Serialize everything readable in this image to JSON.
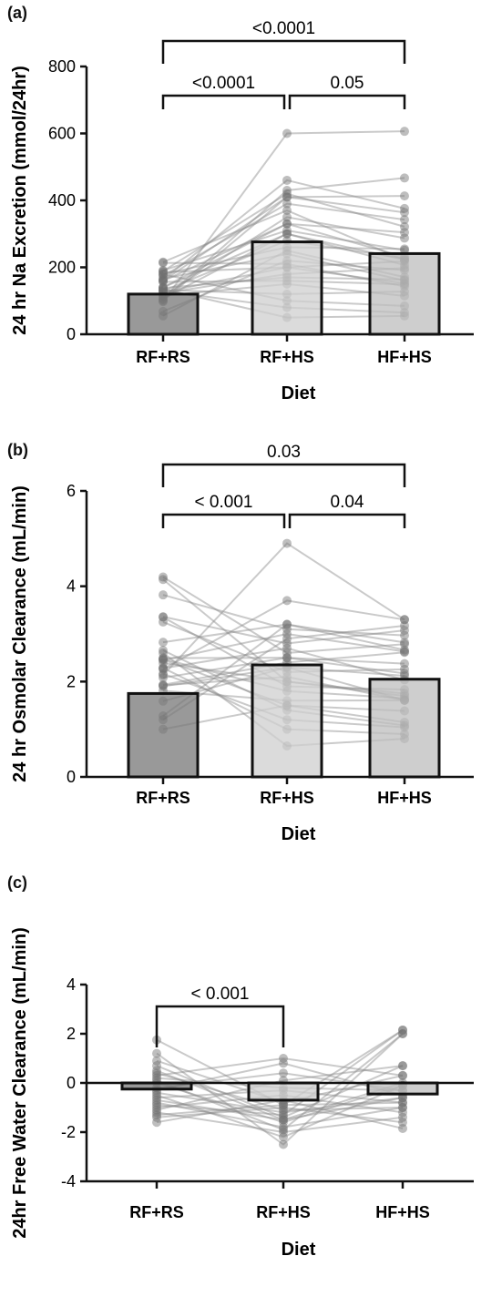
{
  "chart_data": [
    {
      "panel": "(a)",
      "type": "bar",
      "xlabel": "Diet",
      "ylabel": "24 hr Na Excretion (mmol/24hr)",
      "categories": [
        "RF+RS",
        "RF+HS",
        "HF+HS"
      ],
      "values": [
        120,
        276,
        241
      ],
      "bar_colors": [
        "#777777",
        "#cfcfcf",
        "#bdbdbd"
      ],
      "ylim": [
        0,
        800
      ],
      "yticks": [
        "0",
        "200",
        "400",
        "600",
        "800"
      ],
      "comparisons": [
        {
          "from": 0,
          "to": 2,
          "label": "<0.0001"
        },
        {
          "from": 0,
          "to": 1,
          "label": "<0.0001"
        },
        {
          "from": 1,
          "to": 2,
          "label": "0.05"
        }
      ],
      "individual_points": [
        [
          55,
          250
        ],
        [
          60,
          150
        ],
        [
          65,
          220
        ],
        [
          70,
          430
        ],
        [
          75,
          600
        ],
        [
          80,
          300
        ],
        [
          85,
          180
        ],
        [
          90,
          410
        ],
        [
          95,
          350
        ],
        [
          100,
          120
        ],
        [
          105,
          460
        ],
        [
          110,
          330
        ],
        [
          115,
          200
        ],
        [
          120,
          260
        ],
        [
          125,
          390
        ],
        [
          130,
          160
        ],
        [
          135,
          310
        ],
        [
          140,
          240
        ],
        [
          150,
          420
        ],
        [
          160,
          100
        ],
        [
          170,
          370
        ],
        [
          180,
          210
        ],
        [
          90,
          280
        ],
        [
          110,
          50
        ],
        [
          130,
          170
        ],
        [
          120,
          300
        ],
        [
          100,
          80
        ],
        [
          140,
          330
        ],
        [
          150,
          410
        ],
        [
          160,
          200
        ]
      ]
    },
    {
      "panel": "(b)",
      "type": "bar",
      "xlabel": "Diet",
      "ylabel": "24 hr Osmolar Clearance (mL/min)",
      "categories": [
        "RF+RS",
        "RF+HS",
        "HF+HS"
      ],
      "values": [
        1.75,
        2.35,
        2.05
      ],
      "bar_colors": [
        "#777777",
        "#cfcfcf",
        "#bdbdbd"
      ],
      "ylim": [
        0,
        6
      ],
      "yticks": [
        "0",
        "2",
        "4",
        "6"
      ],
      "comparisons": [
        {
          "from": 0,
          "to": 2,
          "label": "0.03"
        },
        {
          "from": 0,
          "to": 1,
          "label": "< 0.001"
        },
        {
          "from": 1,
          "to": 2,
          "label": "0.04"
        }
      ],
      "individual_points": [
        [
          1.0,
          1.5
        ],
        [
          1.1,
          2.0
        ],
        [
          1.2,
          3.2
        ],
        [
          1.3,
          2.5
        ],
        [
          1.4,
          2.1
        ],
        [
          1.5,
          4.9
        ],
        [
          1.6,
          1.8
        ],
        [
          1.7,
          2.4
        ],
        [
          1.8,
          3.7
        ],
        [
          1.9,
          1.4
        ],
        [
          2.0,
          2.8
        ],
        [
          2.1,
          2.2
        ],
        [
          2.2,
          3.0
        ],
        [
          2.8,
          2.6
        ],
        [
          3.0,
          2.0
        ],
        [
          3.2,
          3.1
        ],
        [
          1.3,
          0.65
        ],
        [
          1.2,
          1.6
        ],
        [
          1.0,
          2.3
        ],
        [
          2.9,
          1.9
        ],
        [
          1.1,
          1.2
        ],
        [
          1.5,
          2.7
        ],
        [
          1.9,
          3.2
        ],
        [
          1.7,
          1.0
        ],
        [
          1.4,
          2.3
        ],
        [
          2.0,
          1.5
        ],
        [
          1.8,
          2.5
        ],
        [
          1.2,
          2.9
        ]
      ]
    },
    {
      "panel": "(c)",
      "type": "bar",
      "xlabel": "Diet",
      "ylabel": "24hr Free Water Clearance (mL/min)",
      "categories": [
        "RF+RS",
        "RF+HS",
        "HF+HS"
      ],
      "values": [
        -0.25,
        -0.7,
        -0.45
      ],
      "bar_colors": [
        "#777777",
        "#cfcfcf",
        "#bdbdbd"
      ],
      "ylim": [
        -4,
        4
      ],
      "yticks": [
        "-4",
        "-2",
        "0",
        "2",
        "4"
      ],
      "comparisons": [
        {
          "from": 0,
          "to": 1,
          "label": "< 0.001"
        }
      ],
      "individual_points": [
        [
          1.75,
          -0.9
        ],
        [
          1.2,
          -2.5
        ],
        [
          0.7,
          -1.4
        ],
        [
          0.3,
          1.0
        ],
        [
          0.0,
          -1.6
        ],
        [
          -0.2,
          0.4
        ],
        [
          -0.4,
          -1.2
        ],
        [
          -0.6,
          -0.3
        ],
        [
          -0.8,
          -1.8
        ],
        [
          -1.0,
          -0.5
        ],
        [
          -1.2,
          -2.0
        ],
        [
          -1.4,
          -1.0
        ],
        [
          -1.6,
          -0.7
        ],
        [
          0.5,
          -1.5
        ],
        [
          -0.3,
          0.8
        ],
        [
          -0.9,
          -1.3
        ],
        [
          0.1,
          -1.9
        ],
        [
          -1.1,
          0.1
        ],
        [
          0.9,
          -0.8
        ],
        [
          -0.5,
          -2.2
        ],
        [
          0.2,
          -0.2
        ],
        [
          -0.7,
          -1.5
        ],
        [
          -1.3,
          -0.9
        ],
        [
          0.4,
          -1.1
        ]
      ],
      "hfhs_points": [
        2.15,
        2.0,
        0.7,
        0.3,
        -0.1,
        -0.3,
        -0.6,
        -0.8,
        -1.0,
        -1.2,
        -1.4,
        -1.6,
        -1.85,
        0.0,
        -0.5
      ]
    }
  ]
}
